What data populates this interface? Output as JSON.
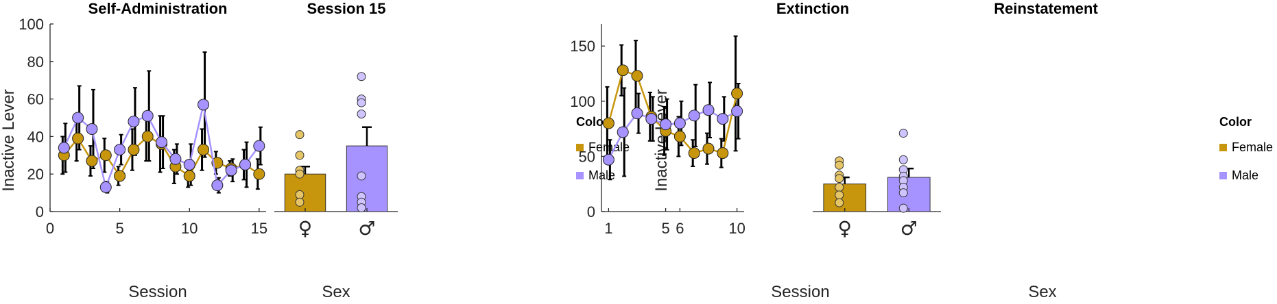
{
  "colors": {
    "female": "#C8960C",
    "male": "#A793FF",
    "error": "#000000"
  },
  "chart_data": [
    {
      "id": "self-admin",
      "type": "line",
      "title": "Self-Administration",
      "xlabel": "Session",
      "ylabel": "Inactive Lever",
      "xlim": [
        0,
        15.5
      ],
      "ylim": [
        0,
        100
      ],
      "xticks": [
        0,
        5,
        10,
        15
      ],
      "yticks": [
        0,
        20,
        40,
        60,
        80,
        100
      ],
      "x": [
        1,
        2,
        3,
        4,
        5,
        6,
        7,
        8,
        9,
        10,
        11,
        12,
        13,
        14,
        15
      ],
      "series": [
        {
          "name": "Female",
          "values": [
            30,
            39,
            27,
            30,
            19,
            33,
            40,
            36,
            24,
            19,
            33,
            26,
            23,
            25,
            20
          ],
          "errors": [
            10,
            12,
            8,
            9,
            5,
            11,
            13,
            15,
            9,
            6,
            11,
            6,
            4,
            8,
            8
          ]
        },
        {
          "name": "Male",
          "values": [
            34,
            50,
            44,
            13,
            33,
            48,
            51,
            37,
            28,
            25,
            57,
            14,
            22,
            25,
            35
          ],
          "errors": [
            13,
            17,
            21,
            3,
            8,
            18,
            24,
            14,
            8,
            11,
            28,
            4,
            6,
            12,
            10
          ]
        }
      ]
    },
    {
      "id": "session15",
      "type": "bar",
      "title": "Session 15",
      "xlabel": "Sex",
      "ylim": [
        0,
        100
      ],
      "categories": [
        "♀",
        "♂"
      ],
      "values": [
        20,
        35
      ],
      "errors": [
        4,
        10
      ],
      "points": [
        [
          41,
          30,
          22,
          20,
          9,
          5
        ],
        [
          72,
          60,
          58,
          52,
          19,
          8,
          5,
          2
        ]
      ]
    },
    {
      "id": "extinction",
      "type": "line",
      "title": "Extinction",
      "xlabel": "Session",
      "ylabel": "Inactive Lever",
      "xlim": [
        0.5,
        10.5
      ],
      "ylim": [
        0,
        170
      ],
      "xticks": [
        1,
        5,
        6,
        10
      ],
      "yticks": [
        0,
        50,
        100,
        150
      ],
      "x": [
        1,
        2,
        3,
        4,
        5,
        6,
        7,
        8,
        9,
        10
      ],
      "series": [
        {
          "name": "Female",
          "values": [
            80,
            128,
            123,
            86,
            73,
            68,
            53,
            57,
            53,
            107
          ],
          "errors": [
            33,
            23,
            32,
            22,
            22,
            18,
            12,
            14,
            13,
            52
          ]
        },
        {
          "name": "Male",
          "values": [
            47,
            72,
            89,
            84,
            79,
            80,
            87,
            92,
            84,
            91
          ],
          "errors": [
            18,
            40,
            18,
            20,
            23,
            20,
            28,
            25,
            20,
            25
          ]
        }
      ]
    },
    {
      "id": "reinstatement",
      "type": "bar",
      "title": "Reinstatement",
      "xlabel": "Sex",
      "ylim": [
        0,
        170
      ],
      "categories": [
        "♀",
        "♂"
      ],
      "values": [
        25,
        31
      ],
      "errors": [
        6,
        8
      ],
      "points": [
        [
          46,
          42,
          33,
          30,
          22,
          15,
          8
        ],
        [
          71,
          47,
          38,
          32,
          28,
          22,
          17,
          3
        ]
      ]
    }
  ],
  "legends": [
    {
      "id": "legend-1",
      "title": "Color",
      "items": [
        {
          "label": "Female",
          "key": "female"
        },
        {
          "label": "Male",
          "key": "male"
        }
      ]
    },
    {
      "id": "legend-2",
      "title": "Color",
      "items": [
        {
          "label": "Female",
          "key": "female"
        },
        {
          "label": "Male",
          "key": "male"
        }
      ]
    }
  ]
}
